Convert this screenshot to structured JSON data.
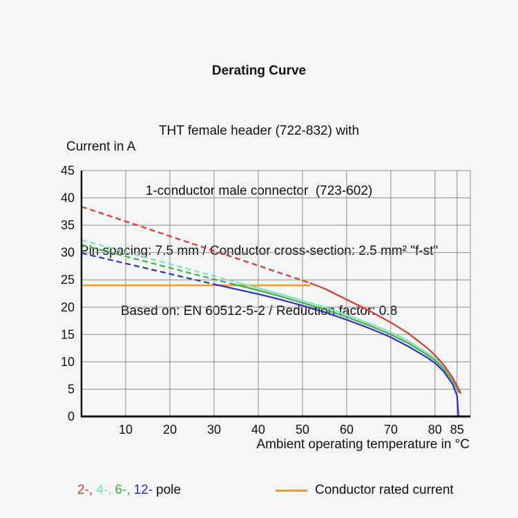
{
  "header": {
    "title": "Derating Curve",
    "subtitle_lines": [
      "THT female header (722-832) with",
      "1-conductor male connector  (723-602)",
      "Pin spacing: 7.5 mm / Conductor cross-section: 2.5 mm² \"f-st\"",
      "Based on: EN 60512-5-2 / Reduction factor: 0.8"
    ]
  },
  "chart_data": {
    "type": "line",
    "title": "Derating Curve",
    "ylabel": "Current in A",
    "xlabel": "Ambient operating temperature in °C",
    "xlim": [
      0,
      88
    ],
    "ylim": [
      0,
      45
    ],
    "xticks": [
      10,
      20,
      30,
      40,
      50,
      60,
      70,
      80,
      85
    ],
    "yticks": [
      0,
      5,
      10,
      15,
      20,
      25,
      30,
      35,
      40,
      45
    ],
    "grid": true,
    "grid_color": "#8c8c8c",
    "axis_color": "#111111",
    "text_color": "#111111",
    "series": [
      {
        "name": "2-pole",
        "color": "#e5332a",
        "dashed": [
          [
            0,
            38.4
          ],
          [
            10,
            35.7
          ],
          [
            20,
            33.0
          ],
          [
            30,
            30.3
          ],
          [
            40,
            27.6
          ],
          [
            50,
            24.9
          ],
          [
            51.8,
            24.4
          ]
        ],
        "solid": [
          [
            51.8,
            24.4
          ],
          [
            55,
            23.4
          ],
          [
            60,
            21.4
          ],
          [
            65,
            19.4
          ],
          [
            70,
            17.2
          ],
          [
            74,
            15.2
          ],
          [
            78,
            12.7
          ],
          [
            80,
            11.2
          ],
          [
            82,
            9.4
          ],
          [
            84,
            7.1
          ],
          [
            85,
            5.6
          ],
          [
            85.8,
            4.3
          ]
        ]
      },
      {
        "name": "4-pole",
        "color": "#7fe0c3",
        "dashed": [
          [
            0,
            32.3
          ],
          [
            10,
            30.1
          ],
          [
            20,
            27.9
          ],
          [
            30,
            25.7
          ],
          [
            35,
            24.6
          ]
        ],
        "solid": [
          [
            35,
            24.6
          ],
          [
            40,
            23.5
          ],
          [
            45,
            22.4
          ],
          [
            50,
            21.2
          ],
          [
            55,
            20.0
          ],
          [
            60,
            18.6
          ],
          [
            65,
            17.1
          ],
          [
            70,
            15.4
          ],
          [
            74,
            13.8
          ],
          [
            78,
            11.8
          ],
          [
            80,
            10.7
          ],
          [
            82,
            9.1
          ],
          [
            84,
            6.9
          ],
          [
            85,
            5.4
          ],
          [
            85.6,
            4.6
          ]
        ]
      },
      {
        "name": "6-pole",
        "color": "#3bb03a",
        "dashed": [
          [
            0,
            31.4
          ],
          [
            10,
            29.3
          ],
          [
            20,
            27.2
          ],
          [
            30,
            25.1
          ],
          [
            34,
            24.3
          ]
        ],
        "solid": [
          [
            34,
            24.3
          ],
          [
            40,
            23.1
          ],
          [
            45,
            22.0
          ],
          [
            50,
            20.8
          ],
          [
            55,
            19.6
          ],
          [
            60,
            18.2
          ],
          [
            65,
            16.7
          ],
          [
            70,
            15.0
          ],
          [
            74,
            13.4
          ],
          [
            78,
            11.4
          ],
          [
            80,
            10.3
          ],
          [
            82,
            8.7
          ],
          [
            84,
            6.5
          ],
          [
            85,
            5.0
          ],
          [
            85.5,
            4.4
          ]
        ]
      },
      {
        "name": "12-pole",
        "color": "#2b2bd0",
        "dashed": [
          [
            0,
            29.9
          ],
          [
            10,
            28.0
          ],
          [
            20,
            26.1
          ],
          [
            30,
            24.2
          ]
        ],
        "solid": [
          [
            30,
            24.2
          ],
          [
            35,
            23.3
          ],
          [
            40,
            22.4
          ],
          [
            45,
            21.4
          ],
          [
            50,
            20.3
          ],
          [
            55,
            19.1
          ],
          [
            60,
            17.7
          ],
          [
            65,
            16.2
          ],
          [
            70,
            14.5
          ],
          [
            74,
            12.8
          ],
          [
            78,
            10.9
          ],
          [
            80,
            9.8
          ],
          [
            82,
            8.2
          ],
          [
            84,
            5.9
          ],
          [
            85,
            3.8
          ],
          [
            85.3,
            0.2
          ]
        ]
      }
    ],
    "rated_current_line": {
      "name": "Conductor rated current",
      "color": "#f59b1e",
      "y": 24,
      "x_start": 0,
      "x_end": 51.8
    },
    "legend_position": "bottom"
  },
  "legend": {
    "poles": [
      {
        "label": "2-,",
        "color": "#e5332a"
      },
      {
        "label": "4-,",
        "color": "#7fe0c3"
      },
      {
        "label": "6-,",
        "color": "#3bb03a"
      },
      {
        "label": "12-",
        "color": "#2b2bd0"
      }
    ],
    "pole_suffix": "pole",
    "rated_label": "Conductor rated current",
    "rated_color": "#f59b1e"
  }
}
